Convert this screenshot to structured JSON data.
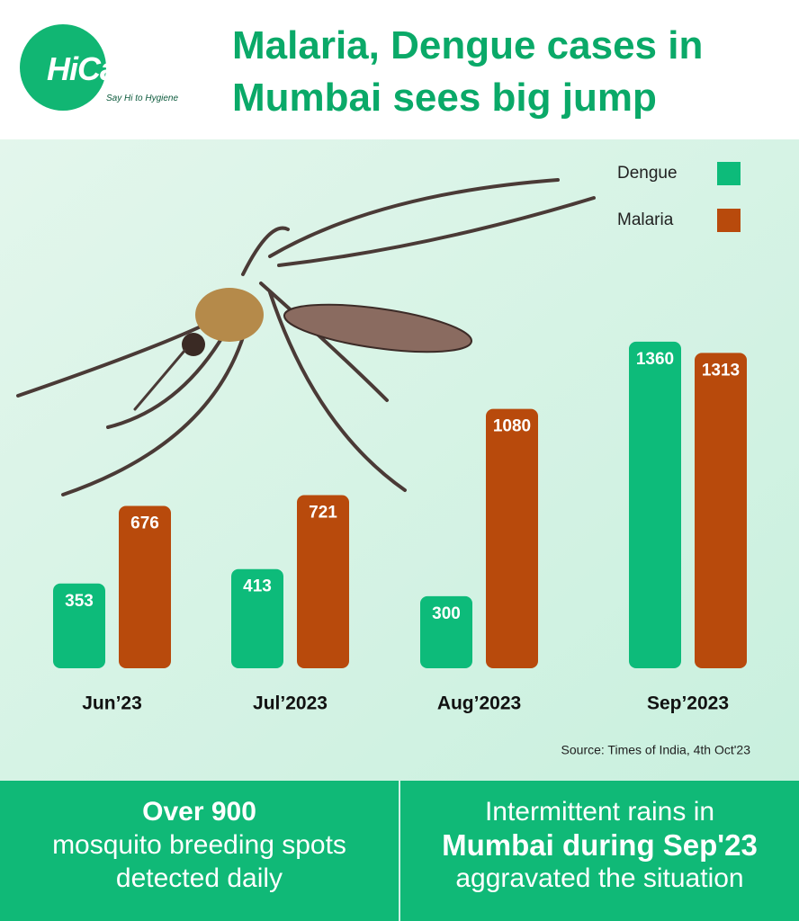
{
  "logo": {
    "name": "HiCare",
    "tagline": "Say Hi to Hygiene"
  },
  "chart_data": {
    "type": "bar",
    "title": "Malaria, Dengue cases in Mumbai sees big jump",
    "categories": [
      "Jun’23",
      "Jul’2023",
      "Aug’2023",
      "Sep’2023"
    ],
    "series": [
      {
        "name": "Dengue",
        "color": "#0dbb7a",
        "values": [
          353,
          413,
          300,
          1360
        ]
      },
      {
        "name": "Malaria",
        "color": "#b84a0c",
        "values": [
          676,
          721,
          1080,
          1313
        ]
      }
    ],
    "source": "Source: Times of India, 4th Oct'23"
  },
  "footer": {
    "left": {
      "highlight": "Over 900",
      "lines": [
        "mosquito breeding spots",
        "detected daily"
      ]
    },
    "right": {
      "line1": "Intermittent rains in",
      "highlight": "Mumbai during Sep'23",
      "line3": "aggravated the situation"
    }
  }
}
